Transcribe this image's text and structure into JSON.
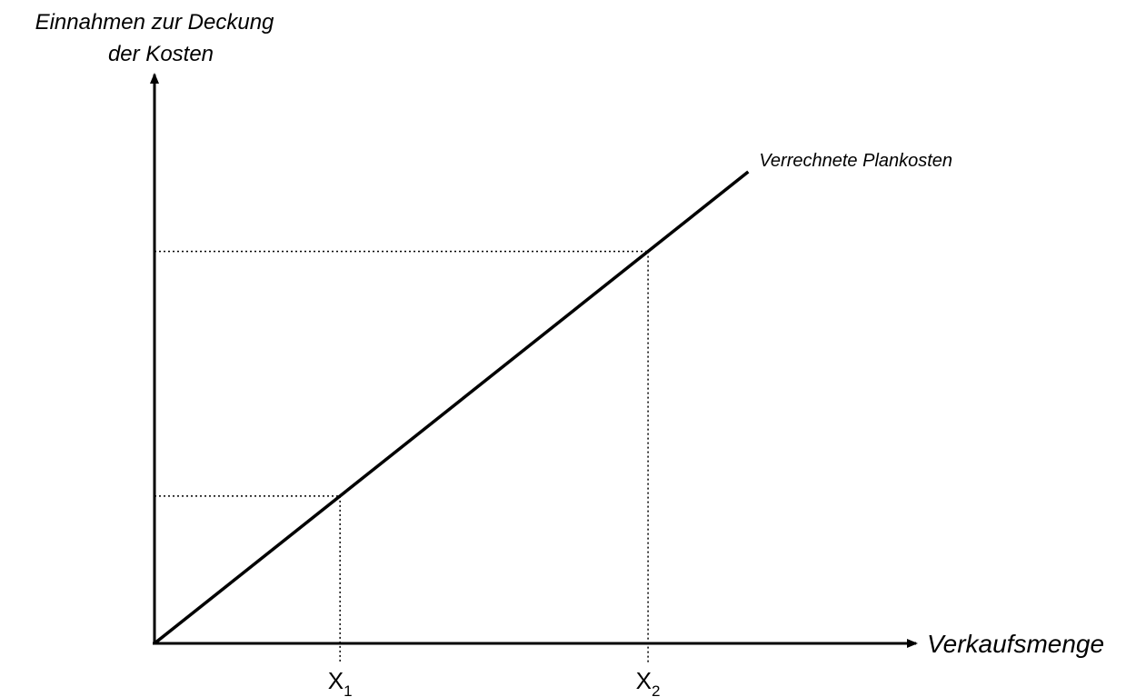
{
  "chart_data": {
    "type": "line",
    "ylabel_lines": [
      "Einnahmen zur Deckung",
      "der Kosten"
    ],
    "xlabel": "Verkaufsmenge",
    "series": [
      {
        "name": "Verrechnete Plankosten",
        "x": [
          0,
          1.6
        ],
        "y": [
          0,
          1.6
        ]
      }
    ],
    "markers": [
      {
        "label": "X",
        "sub": "1",
        "x": 0.5,
        "y": 0.5
      },
      {
        "label": "X",
        "sub": "2",
        "x": 1.33,
        "y": 1.33
      }
    ],
    "xlim": [
      0,
      2.4
    ],
    "ylim": [
      0,
      1.93
    ],
    "grid": false,
    "legend": "none",
    "line_color": "#000000"
  }
}
